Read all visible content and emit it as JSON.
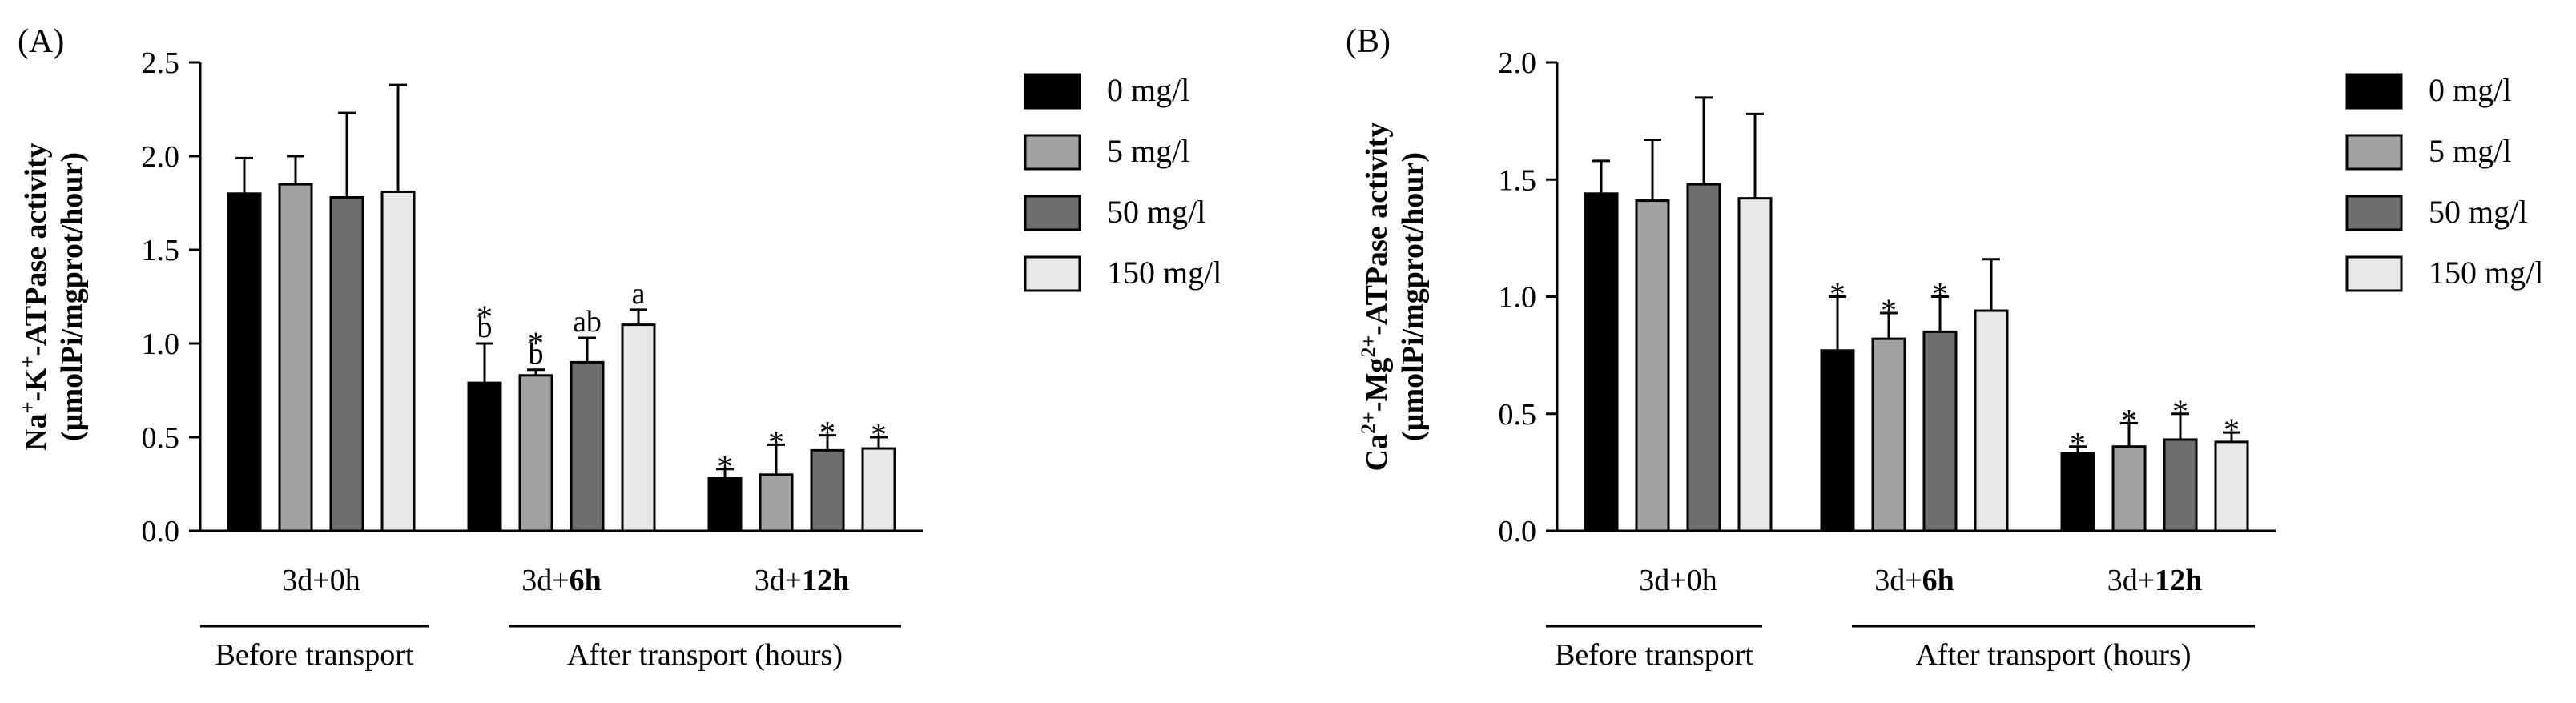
{
  "chart_data": [
    {
      "type": "bar",
      "panel_label": "(A)",
      "ylabel_line1_parts": [
        "Na",
        "+",
        "-K",
        "+",
        "-ATPase activity"
      ],
      "ylabel_line2": "(µmolPi/mgprot/hour)",
      "ylim": [
        0,
        2.5
      ],
      "yticks": [
        0,
        0.5,
        1.0,
        1.5,
        2.0,
        2.5
      ],
      "ytick_labels": [
        "0.0",
        "0.5",
        "1.0",
        "1.5",
        "2.0",
        "2.5"
      ],
      "group_labels": [
        {
          "prefix": "3d+",
          "bold": "",
          "plain": "0h"
        },
        {
          "prefix": "3d+",
          "bold": "6h",
          "plain": ""
        },
        {
          "prefix": "3d+",
          "bold": "12h",
          "plain": ""
        }
      ],
      "period_labels": [
        "Before transport",
        "After transport (hours)"
      ],
      "series": [
        {
          "name": "0 mg/l",
          "values": [
            1.8,
            0.79,
            0.28
          ],
          "errors": [
            0.19,
            0.21,
            0.05
          ],
          "annotations": [
            [
              "",
              ""
            ],
            [
              "*",
              "b"
            ],
            [
              "*",
              ""
            ]
          ]
        },
        {
          "name": "5 mg/l",
          "values": [
            1.85,
            0.83,
            0.3
          ],
          "errors": [
            0.15,
            0.03,
            0.16
          ],
          "annotations": [
            [
              "",
              ""
            ],
            [
              "*",
              "b"
            ],
            [
              "*",
              ""
            ]
          ]
        },
        {
          "name": "50 mg/l",
          "values": [
            1.78,
            0.9,
            0.43
          ],
          "errors": [
            0.45,
            0.13,
            0.08
          ],
          "annotations": [
            [
              "",
              ""
            ],
            [
              "",
              "ab"
            ],
            [
              "*",
              ""
            ]
          ]
        },
        {
          "name": "150 mg/l",
          "values": [
            1.81,
            1.1,
            0.44
          ],
          "errors": [
            0.57,
            0.08,
            0.06
          ],
          "annotations": [
            [
              "",
              ""
            ],
            [
              "",
              "a"
            ],
            [
              "*",
              ""
            ]
          ]
        }
      ]
    },
    {
      "type": "bar",
      "panel_label": "(B)",
      "ylabel_line1_parts": [
        "Ca",
        "2+",
        "-Mg",
        "2+",
        "-ATPase  activity"
      ],
      "ylabel_line2": "(µmolPi/mgprot/hour)",
      "ylim": [
        0,
        2.0
      ],
      "yticks": [
        0,
        0.5,
        1.0,
        1.5,
        2.0
      ],
      "ytick_labels": [
        "0.0",
        "0.5",
        "1.0",
        "1.5",
        "2.0"
      ],
      "group_labels": [
        {
          "prefix": "3d+",
          "bold": "",
          "plain": "0h"
        },
        {
          "prefix": "3d+",
          "bold": "6h",
          "plain": ""
        },
        {
          "prefix": "3d+",
          "bold": "12h",
          "plain": ""
        }
      ],
      "period_labels": [
        "Before transport",
        "After transport (hours)"
      ],
      "series": [
        {
          "name": "0 mg/l",
          "values": [
            1.44,
            0.77,
            0.33
          ],
          "errors": [
            0.14,
            0.23,
            0.03
          ],
          "annotations": [
            [
              "",
              ""
            ],
            [
              "*",
              ""
            ],
            [
              "*",
              ""
            ]
          ]
        },
        {
          "name": "5 mg/l",
          "values": [
            1.41,
            0.82,
            0.36
          ],
          "errors": [
            0.26,
            0.11,
            0.1
          ],
          "annotations": [
            [
              "",
              ""
            ],
            [
              "*",
              ""
            ],
            [
              "*",
              ""
            ]
          ]
        },
        {
          "name": "50 mg/l",
          "values": [
            1.48,
            0.85,
            0.39
          ],
          "errors": [
            0.37,
            0.15,
            0.11
          ],
          "annotations": [
            [
              "",
              ""
            ],
            [
              "*",
              ""
            ],
            [
              "*",
              ""
            ]
          ]
        },
        {
          "name": "150 mg/l",
          "values": [
            1.42,
            0.94,
            0.38
          ],
          "errors": [
            0.36,
            0.22,
            0.04
          ],
          "annotations": [
            [
              "",
              ""
            ],
            [
              "",
              ""
            ],
            [
              "*",
              ""
            ]
          ]
        }
      ]
    }
  ],
  "colors": {
    "series": [
      "#000000",
      "#a3a3a3",
      "#6e6e6e",
      "#e8e8e8"
    ],
    "axis": "#000000"
  }
}
